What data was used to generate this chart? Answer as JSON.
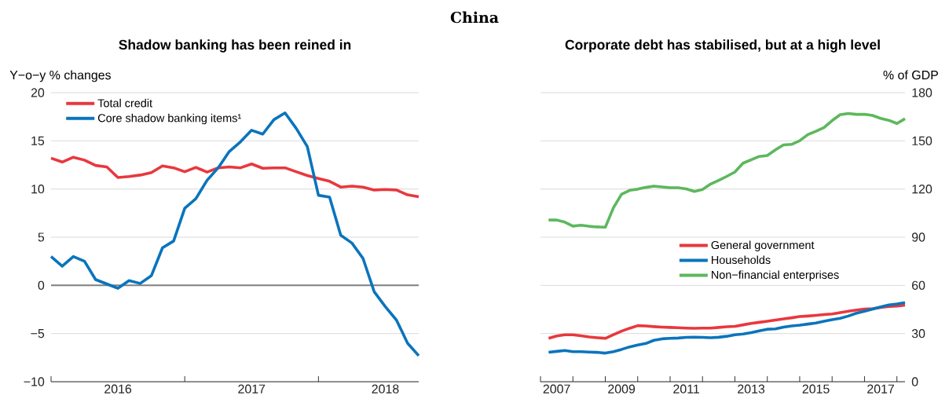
{
  "chart_data": [
    {
      "type": "line",
      "title": "Shadow banking has been reined in",
      "ylabel": "Y−o−y % changes",
      "annotations": [
        "China"
      ],
      "x": [
        "2016-01",
        "2016-02",
        "2016-03",
        "2016-04",
        "2016-05",
        "2016-06",
        "2016-07",
        "2016-08",
        "2016-09",
        "2016-10",
        "2016-11",
        "2016-12",
        "2017-01",
        "2017-02",
        "2017-03",
        "2017-04",
        "2017-05",
        "2017-06",
        "2017-07",
        "2017-08",
        "2017-09",
        "2017-10",
        "2017-11",
        "2017-12",
        "2018-01",
        "2018-02",
        "2018-03",
        "2018-04",
        "2018-05",
        "2018-06",
        "2018-07",
        "2018-08",
        "2018-09",
        "2018-10"
      ],
      "series": [
        {
          "name": "Total credit",
          "color": "#e8383d",
          "values": [
            13.2,
            12.8,
            13.3,
            13.0,
            12.45,
            12.3,
            11.2,
            11.3,
            11.45,
            11.7,
            12.4,
            12.2,
            11.8,
            12.25,
            11.75,
            12.2,
            12.3,
            12.2,
            12.6,
            12.15,
            12.2,
            12.2,
            11.8,
            11.4,
            11.1,
            10.8,
            10.2,
            10.3,
            10.2,
            9.9,
            9.95,
            9.9,
            9.4,
            9.2
          ]
        },
        {
          "name": "Core shadow banking items¹",
          "color": "#0a74bc",
          "values": [
            3.0,
            2.0,
            3.0,
            2.5,
            0.6,
            0.15,
            -0.3,
            0.5,
            0.2,
            1.0,
            3.9,
            4.6,
            8.0,
            9.0,
            10.9,
            12.2,
            13.9,
            14.9,
            16.1,
            15.7,
            17.2,
            17.9,
            16.3,
            14.4,
            9.35,
            9.15,
            5.2,
            4.4,
            2.8,
            -0.65,
            -2.2,
            -3.6,
            -6.0,
            -7.3
          ]
        }
      ],
      "xlim": [
        "2016-01",
        "2018-10"
      ],
      "xticks": [
        {
          "value": "2016-01",
          "label": null
        },
        {
          "value": "2016-07",
          "label": "2016"
        },
        {
          "value": "2017-01",
          "label": null
        },
        {
          "value": "2017-07",
          "label": "2017"
        },
        {
          "value": "2018-01",
          "label": null
        },
        {
          "value": "2018-07",
          "label": "2018"
        }
      ],
      "ylim": [
        -10,
        20
      ],
      "yticks": [
        {
          "value": -10,
          "label": "−10"
        },
        {
          "value": -5,
          "label": "−5"
        },
        0,
        5,
        10,
        15,
        20
      ],
      "ref_lines": [
        {
          "axis": "y",
          "value": 0,
          "color": "#7f7f7f"
        }
      ],
      "grid": "y",
      "legend": "top left"
    },
    {
      "type": "line",
      "title": "Corporate debt has stabilised, but at a high level",
      "ylabel": "% of GDP",
      "x": [
        "2007-04",
        "2007-07",
        "2007-10",
        "2008-01",
        "2008-04",
        "2008-07",
        "2008-10",
        "2009-01",
        "2009-04",
        "2009-07",
        "2009-10",
        "2010-01",
        "2010-04",
        "2010-07",
        "2010-10",
        "2011-01",
        "2011-04",
        "2011-07",
        "2011-10",
        "2012-01",
        "2012-04",
        "2012-07",
        "2012-10",
        "2013-01",
        "2013-04",
        "2013-07",
        "2013-10",
        "2014-01",
        "2014-04",
        "2014-07",
        "2014-10",
        "2015-01",
        "2015-04",
        "2015-07",
        "2015-10",
        "2016-01",
        "2016-04",
        "2016-07",
        "2016-10",
        "2017-01",
        "2017-04",
        "2017-07",
        "2017-10",
        "2018-01",
        "2018-04"
      ],
      "series": [
        {
          "name": "General government",
          "color": "#e8383d",
          "values": [
            27.0,
            28.5,
            29.2,
            29.2,
            28.6,
            27.9,
            27.4,
            27.0,
            29.3,
            31.5,
            33.3,
            34.9,
            34.7,
            34.3,
            34.0,
            33.8,
            33.6,
            33.4,
            33.3,
            33.4,
            33.4,
            33.8,
            34.2,
            34.5,
            35.4,
            36.3,
            37.0,
            37.7,
            38.4,
            39.1,
            39.8,
            40.6,
            40.9,
            41.3,
            41.8,
            42.2,
            43.0,
            43.9,
            44.6,
            45.2,
            45.5,
            46.2,
            46.8,
            47.1,
            47.7
          ]
        },
        {
          "name": "Households",
          "color": "#0a74bc",
          "values": [
            18.3,
            18.9,
            19.4,
            18.7,
            18.7,
            18.5,
            18.3,
            17.8,
            18.7,
            20.1,
            21.7,
            22.9,
            23.8,
            25.8,
            26.7,
            27.0,
            27.2,
            27.6,
            27.7,
            27.6,
            27.4,
            27.7,
            28.3,
            29.2,
            29.7,
            30.6,
            31.7,
            32.7,
            32.9,
            34.0,
            34.7,
            35.2,
            35.9,
            36.6,
            37.7,
            38.6,
            39.5,
            40.9,
            42.7,
            43.9,
            45.2,
            46.6,
            47.8,
            48.4,
            49.3
          ]
        },
        {
          "name": "Non−financial enterprises",
          "color": "#5cb85c",
          "values": [
            100.7,
            100.7,
            99.4,
            96.9,
            97.5,
            96.8,
            96.4,
            96.2,
            108.3,
            116.7,
            119.2,
            119.9,
            121.0,
            121.8,
            121.3,
            120.8,
            120.8,
            120.1,
            118.5,
            119.7,
            123.1,
            125.4,
            127.9,
            130.6,
            136.1,
            138.2,
            140.3,
            140.9,
            144.4,
            147.5,
            147.8,
            150.1,
            153.9,
            156.0,
            158.3,
            162.6,
            166.3,
            167.0,
            166.5,
            166.5,
            165.8,
            164.0,
            162.8,
            160.8,
            163.8
          ]
        }
      ],
      "xlim": [
        "2007-01",
        "2018-04"
      ],
      "xticks": [
        {
          "value": "2007-01",
          "label": null
        },
        {
          "value": "2007-07",
          "label": "2007"
        },
        {
          "value": "2008-01",
          "label": null
        },
        {
          "value": "2009-01",
          "label": null
        },
        {
          "value": "2009-07",
          "label": "2009"
        },
        {
          "value": "2010-01",
          "label": null
        },
        {
          "value": "2011-01",
          "label": null
        },
        {
          "value": "2011-07",
          "label": "2011"
        },
        {
          "value": "2012-01",
          "label": null
        },
        {
          "value": "2013-01",
          "label": null
        },
        {
          "value": "2013-07",
          "label": "2013"
        },
        {
          "value": "2014-01",
          "label": null
        },
        {
          "value": "2015-01",
          "label": null
        },
        {
          "value": "2015-07",
          "label": "2015"
        },
        {
          "value": "2016-01",
          "label": null
        },
        {
          "value": "2017-01",
          "label": null
        },
        {
          "value": "2017-07",
          "label": "2017"
        },
        {
          "value": "2018-01",
          "label": null
        }
      ],
      "ylim": [
        0,
        180
      ],
      "yticks": [
        0,
        30,
        60,
        90,
        120,
        150,
        180
      ],
      "grid": "y",
      "legend": "center"
    }
  ]
}
